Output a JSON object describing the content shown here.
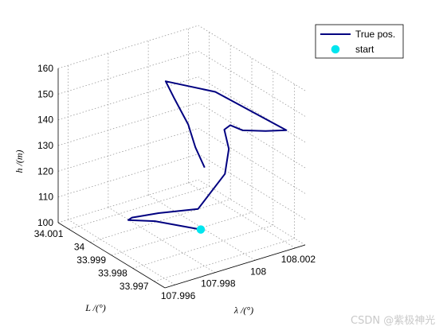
{
  "chart_data": {
    "type": "line",
    "projection": "3d",
    "grid": true,
    "legend_position": "top-right",
    "x_label": "λ /(°)",
    "y_label": "L /(°)",
    "z_label": "h /(m)",
    "x_ticks": [
      "107.996",
      "107.998",
      "108",
      "108.002"
    ],
    "y_ticks": [
      "33.997",
      "33.998",
      "33.999",
      "34",
      "34.001"
    ],
    "z_ticks": [
      "100",
      "110",
      "120",
      "130",
      "140",
      "150",
      "160"
    ],
    "xlim": [
      107.9955,
      108.0025
    ],
    "ylim": [
      33.9965,
      34.0015
    ],
    "zlim": [
      100,
      160
    ],
    "series": [
      {
        "name": "True pos.",
        "color": "#000080",
        "points": [
          [
            107.9991,
            33.9982,
            105.5
          ],
          [
            107.9982,
            33.9995,
            104.3
          ],
          [
            107.9974,
            34.0,
            104.1
          ],
          [
            107.9978,
            34.0002,
            103.1
          ],
          [
            107.9987,
            33.9998,
            104.7
          ],
          [
            107.9995,
            33.9987,
            110.0
          ],
          [
            108.0002,
            33.9981,
            125.0
          ],
          [
            108.0005,
            33.9982,
            133.5
          ],
          [
            108.0007,
            33.9986,
            138.5
          ],
          [
            108.001,
            33.9986,
            139.5
          ],
          [
            108.0013,
            33.9983,
            138.3
          ],
          [
            108.0018,
            33.9977,
            139.9
          ],
          [
            108.0022,
            33.9971,
            142.3
          ],
          [
            108.001,
            33.9993,
            148.9
          ],
          [
            107.9998,
            34.0005,
            149.8
          ],
          [
            107.9995,
            33.9998,
            147.2
          ],
          [
            107.9989,
            33.9986,
            144.8
          ],
          [
            107.9983,
            33.9977,
            141.9
          ],
          [
            107.9978,
            33.9968,
            139.8
          ]
        ]
      },
      {
        "name": "start",
        "color": "#00e5ee",
        "points": [
          [
            107.9991,
            33.9982,
            105.5
          ]
        ]
      }
    ]
  },
  "watermark": "CSDN @紫极神光"
}
